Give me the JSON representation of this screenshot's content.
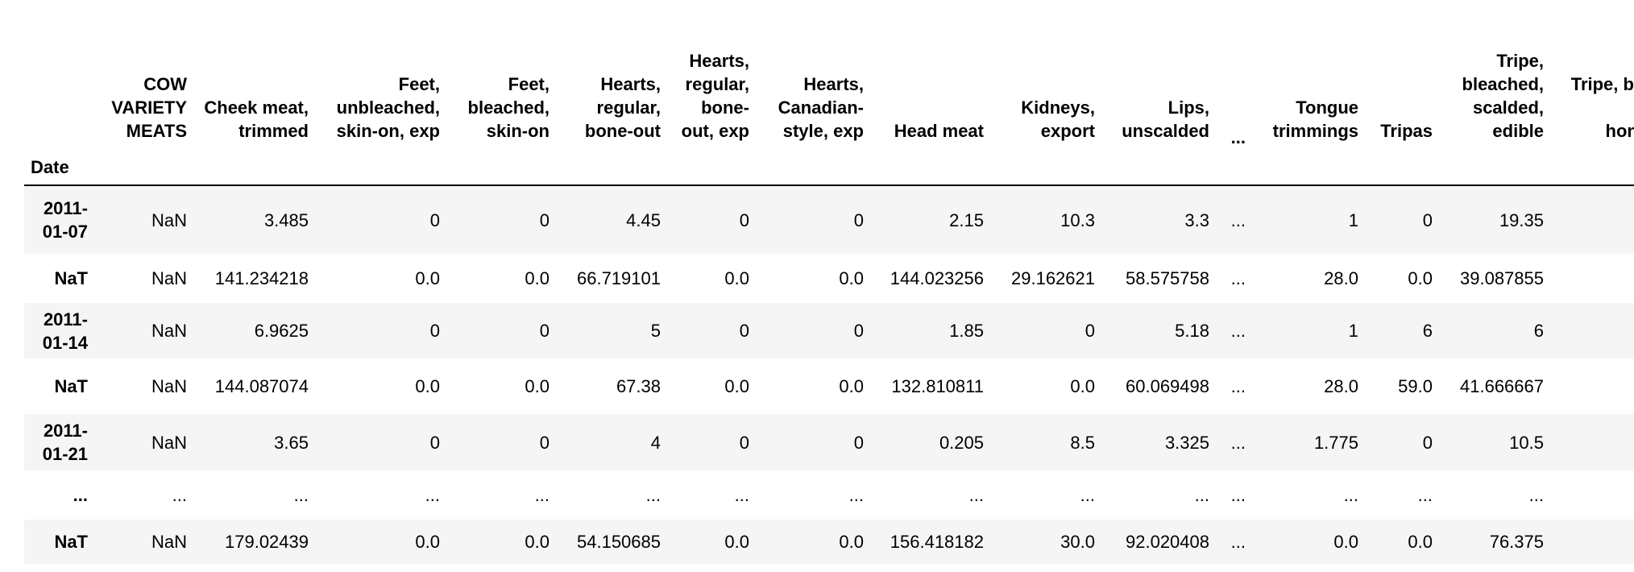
{
  "table": {
    "columns": [
      "COW VARIETY MEATS",
      "Cheek meat, trimmed",
      "Feet, unbleached, skin-on, exp",
      "Feet, bleached, skin-on",
      "Hearts, regular, bone-out",
      "Hearts, regular, bone-out, exp",
      "Hearts, Canadian-style, exp",
      "Head meat",
      "Kidneys, export",
      "Lips, unscalded",
      "...",
      "Tongue trimmings",
      "Tripas",
      "Tripe, bleached, scalded, edible",
      "Tripe, bleached, scalded, honeycomb"
    ],
    "index_name": "Date",
    "rows": [
      {
        "index": "2011-01-07",
        "cells": [
          "NaN",
          "3.485",
          "0",
          "0",
          "4.45",
          "0",
          "0",
          "2.15",
          "10.3",
          "3.3",
          "...",
          "1",
          "0",
          "19.35"
        ]
      },
      {
        "index": "NaT",
        "cells": [
          "NaN",
          "141.234218",
          "0.0",
          "0.0",
          "66.719101",
          "0.0",
          "0.0",
          "144.023256",
          "29.162621",
          "58.575758",
          "...",
          "28.0",
          "0.0",
          "39.087855"
        ]
      },
      {
        "index": "2011-01-14",
        "cells": [
          "NaN",
          "6.9625",
          "0",
          "0",
          "5",
          "0",
          "0",
          "1.85",
          "0",
          "5.18",
          "...",
          "1",
          "6",
          "6"
        ]
      },
      {
        "index": "NaT",
        "cells": [
          "NaN",
          "144.087074",
          "0.0",
          "0.0",
          "67.38",
          "0.0",
          "0.0",
          "132.810811",
          "0.0",
          "60.069498",
          "...",
          "28.0",
          "59.0",
          "41.666667"
        ]
      },
      {
        "index": "2011-01-21",
        "cells": [
          "NaN",
          "3.65",
          "0",
          "0",
          "4",
          "0",
          "0",
          "0.205",
          "8.5",
          "3.325",
          "...",
          "1.775",
          "0",
          "10.5"
        ]
      },
      {
        "index": "...",
        "cells": [
          "...",
          "...",
          "...",
          "...",
          "...",
          "...",
          "...",
          "...",
          "...",
          "...",
          "...",
          "...",
          "...",
          "..."
        ]
      },
      {
        "index": "NaT",
        "cells": [
          "NaN",
          "179.02439",
          "0.0",
          "0.0",
          "54.150685",
          "0.0",
          "0.0",
          "156.418182",
          "30.0",
          "92.020408",
          "...",
          "0.0",
          "0.0",
          "76.375"
        ]
      }
    ]
  }
}
